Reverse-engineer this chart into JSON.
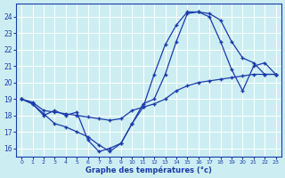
{
  "xlabel": "Graphe des températures (°c)",
  "bg_color": "#cceef2",
  "line_color": "#1a3aaa",
  "grid_color": "#ffffff",
  "xlim": [
    -0.5,
    23.5
  ],
  "ylim": [
    15.5,
    24.8
  ],
  "xticks": [
    0,
    1,
    2,
    3,
    4,
    5,
    6,
    7,
    8,
    9,
    10,
    11,
    12,
    13,
    14,
    15,
    16,
    17,
    18,
    19,
    20,
    21,
    22,
    23
  ],
  "yticks": [
    16,
    17,
    18,
    19,
    20,
    21,
    22,
    23,
    24
  ],
  "series": [
    {
      "x": [
        0,
        1,
        2,
        3,
        4,
        5,
        6,
        7,
        8,
        9,
        10,
        11,
        12,
        13,
        14,
        15,
        16,
        17,
        18,
        19,
        20,
        21,
        22,
        23
      ],
      "y": [
        19.0,
        18.7,
        18.0,
        18.3,
        18.0,
        18.2,
        16.5,
        15.8,
        16.0,
        16.3,
        17.5,
        18.5,
        20.5,
        22.3,
        23.5,
        24.3,
        24.3,
        24.2,
        23.8,
        22.5,
        21.5,
        21.2,
        20.5,
        20.5
      ]
    },
    {
      "x": [
        0,
        1,
        2,
        3,
        4,
        5,
        6,
        7,
        8,
        9,
        10,
        11,
        12,
        13,
        14,
        15,
        16,
        17,
        18,
        19,
        20,
        21,
        22,
        23
      ],
      "y": [
        19.0,
        18.7,
        18.1,
        17.5,
        17.3,
        17.0,
        16.7,
        16.2,
        15.8,
        16.3,
        17.5,
        18.7,
        19.0,
        20.5,
        22.5,
        24.2,
        24.3,
        24.0,
        22.5,
        20.8,
        19.5,
        21.0,
        21.2,
        20.5
      ]
    },
    {
      "x": [
        0,
        1,
        2,
        3,
        4,
        5,
        6,
        7,
        8,
        9,
        10,
        11,
        12,
        13,
        14,
        15,
        16,
        17,
        18,
        19,
        20,
        21,
        22,
        23
      ],
      "y": [
        19.0,
        18.8,
        18.3,
        18.2,
        18.1,
        18.0,
        17.9,
        17.8,
        17.7,
        17.8,
        18.3,
        18.5,
        18.7,
        19.0,
        19.5,
        19.8,
        20.0,
        20.1,
        20.2,
        20.3,
        20.4,
        20.5,
        20.5,
        20.5
      ]
    }
  ]
}
